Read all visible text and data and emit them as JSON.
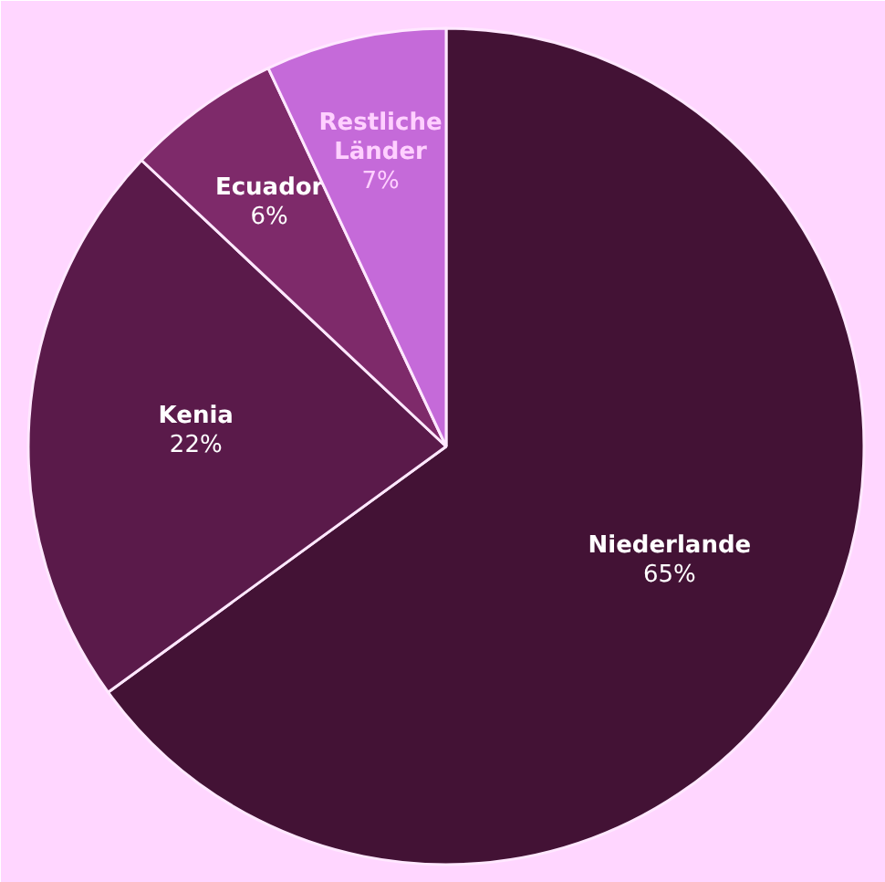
{
  "chart_data": {
    "type": "pie",
    "categories": [
      "Niederlande",
      "Kenia",
      "Ecuador",
      "Restliche Länder"
    ],
    "values": [
      65,
      22,
      6,
      7
    ],
    "value_labels": [
      "65%",
      "22%",
      "6%",
      "7%"
    ],
    "colors": [
      "#431235",
      "#5a1a4a",
      "#7e2a6a",
      "#c56ad9"
    ]
  }
}
